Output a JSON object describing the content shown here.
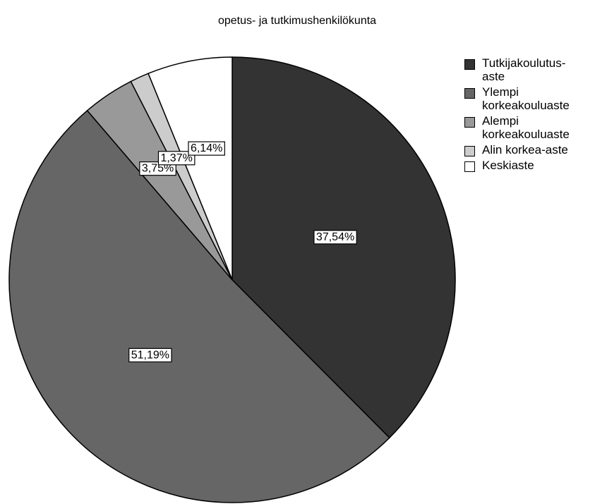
{
  "chart_data": {
    "type": "pie",
    "title": "opetus- ja tutkimushenkilökunta",
    "categories": [
      "Tutkijakoulutus-aste",
      "Ylempi korkeakouluaste",
      "Alempi korkeakouluaste",
      "Alin korkea-aste",
      "Keskiaste"
    ],
    "values": [
      37.54,
      51.19,
      3.75,
      1.37,
      6.14
    ],
    "value_labels": [
      "37,54%",
      "51,19%",
      "3,75%",
      "1,37%",
      "6,14%"
    ],
    "colors": [
      "#333333",
      "#666666",
      "#999999",
      "#cccccc",
      "#ffffff"
    ],
    "legend": "right"
  }
}
